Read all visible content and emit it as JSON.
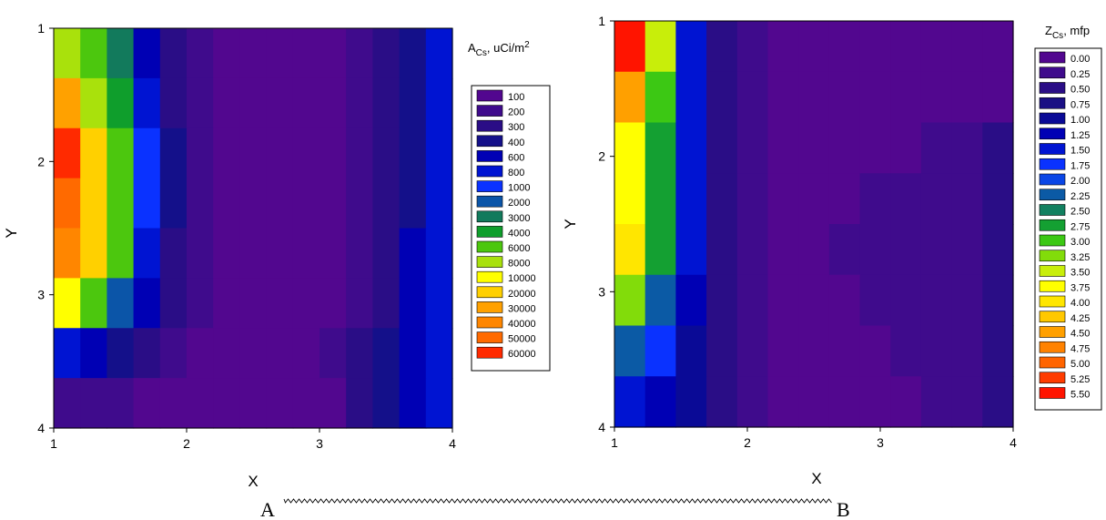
{
  "chart_data": [
    {
      "type": "heatmap",
      "subtype": "filled-contour",
      "title": "",
      "xlabel": "X",
      "ylabel": "Y",
      "xlim": [
        1,
        4
      ],
      "ylim": [
        1,
        4
      ],
      "y_inverted": true,
      "x_ticks": [
        "1",
        "2",
        "3",
        "4"
      ],
      "y_ticks": [
        "1",
        "2",
        "3",
        "4"
      ],
      "legend_title_main": "A",
      "legend_title_sub": "Cs",
      "legend_title_rest": ", uCi/m",
      "legend_title_sup": "2",
      "legend_position": "right",
      "levels": [
        "100",
        "200",
        "300",
        "400",
        "600",
        "800",
        "1000",
        "2000",
        "3000",
        "4000",
        "6000",
        "8000",
        "10000",
        "20000",
        "30000",
        "40000",
        "50000",
        "60000"
      ],
      "colors": [
        "#52078f",
        "#3f0b8c",
        "#2a0d86",
        "#14108a",
        "#0000b4",
        "#0014d2",
        "#0a32ff",
        "#0b55a8",
        "#127a5c",
        "#0f9e2c",
        "#4cc70e",
        "#a9e10c",
        "#ffff00",
        "#ffd000",
        "#ffa100",
        "#ff8600",
        "#ff6a00",
        "#ff2a00"
      ],
      "grid": [
        [
          11,
          10,
          8,
          4,
          2,
          1,
          0,
          0,
          0,
          0,
          0,
          1,
          2,
          3,
          5
        ],
        [
          14,
          11,
          9,
          5,
          2,
          1,
          0,
          0,
          0,
          0,
          0,
          1,
          2,
          3,
          5
        ],
        [
          17,
          13,
          10,
          6,
          3,
          1,
          0,
          0,
          0,
          0,
          0,
          1,
          2,
          3,
          5
        ],
        [
          16,
          13,
          10,
          6,
          3,
          1,
          0,
          0,
          0,
          0,
          0,
          1,
          2,
          3,
          5
        ],
        [
          15,
          13,
          10,
          5,
          2,
          1,
          0,
          0,
          0,
          0,
          0,
          1,
          2,
          4,
          5
        ],
        [
          12,
          10,
          7,
          4,
          2,
          1,
          0,
          0,
          0,
          0,
          0,
          1,
          2,
          4,
          5
        ],
        [
          5,
          4,
          3,
          2,
          1,
          0,
          0,
          0,
          0,
          0,
          1,
          2,
          3,
          4,
          5
        ],
        [
          1,
          1,
          1,
          0,
          0,
          0,
          0,
          0,
          0,
          0,
          0,
          2,
          3,
          4,
          5
        ]
      ]
    },
    {
      "type": "heatmap",
      "subtype": "filled-contour",
      "title": "",
      "xlabel": "X",
      "ylabel": "Y",
      "xlim": [
        1,
        4
      ],
      "ylim": [
        1,
        4
      ],
      "y_inverted": true,
      "x_ticks": [
        "1",
        "2",
        "3",
        "4"
      ],
      "y_ticks": [
        "1",
        "2",
        "3",
        "4"
      ],
      "legend_title_main": "Z",
      "legend_title_sub": "Cs",
      "legend_title_rest": ", mfp",
      "legend_position": "top-right",
      "levels": [
        "0.00",
        "0.25",
        "0.50",
        "0.75",
        "1.00",
        "1.25",
        "1.50",
        "1.75",
        "2.00",
        "2.25",
        "2.50",
        "2.75",
        "3.00",
        "3.25",
        "3.50",
        "3.75",
        "4.00",
        "4.25",
        "4.50",
        "4.75",
        "5.00",
        "5.25",
        "5.50"
      ],
      "colors": [
        "#52078f",
        "#3f0b8c",
        "#2a0d86",
        "#1a0f84",
        "#0a0a96",
        "#0000b4",
        "#0014d2",
        "#0a32ff",
        "#0a46e6",
        "#0b5aa5",
        "#128060",
        "#14a032",
        "#3cc814",
        "#82dc0a",
        "#c8ee0a",
        "#ffff00",
        "#ffe600",
        "#ffc800",
        "#ffa000",
        "#ff8200",
        "#ff6400",
        "#ff3c00",
        "#ff1400"
      ],
      "grid": [
        [
          22,
          14,
          6,
          2,
          1,
          0,
          0,
          0,
          0,
          0,
          0,
          0,
          0
        ],
        [
          18,
          12,
          6,
          2,
          1,
          0,
          0,
          0,
          0,
          0,
          0,
          0,
          0
        ],
        [
          15,
          11,
          6,
          2,
          1,
          0,
          0,
          0,
          0,
          0,
          1,
          1,
          2
        ],
        [
          15,
          11,
          6,
          2,
          1,
          0,
          0,
          0,
          1,
          1,
          1,
          1,
          2
        ],
        [
          16,
          11,
          6,
          2,
          1,
          0,
          0,
          1,
          1,
          1,
          1,
          1,
          2
        ],
        [
          13,
          9,
          5,
          2,
          1,
          0,
          0,
          0,
          1,
          1,
          1,
          1,
          2
        ],
        [
          9,
          7,
          4,
          2,
          1,
          0,
          0,
          0,
          0,
          1,
          1,
          1,
          2
        ],
        [
          6,
          5,
          4,
          2,
          1,
          0,
          0,
          0,
          0,
          0,
          1,
          1,
          2
        ]
      ]
    }
  ],
  "profile": {
    "start_label": "A",
    "end_label": "B"
  }
}
